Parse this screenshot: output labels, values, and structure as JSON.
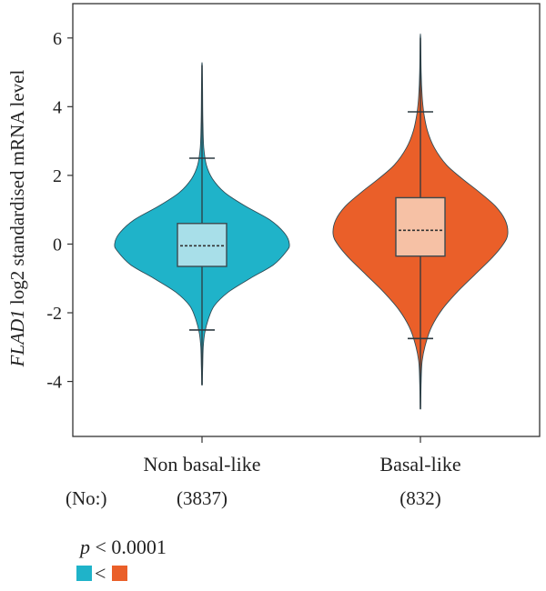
{
  "chart_data": {
    "type": "violin",
    "ylabel_gene": "FLAD1",
    "ylabel_rest": " log2 standardised mRNA level",
    "ylim": [
      -5.6,
      7.0
    ],
    "yticks": [
      -4,
      -2,
      0,
      2,
      4,
      6
    ],
    "ytick_labels": [
      "-4",
      "-2",
      "0",
      "2",
      "4",
      "6"
    ],
    "grid": false,
    "categories": [
      "Non basal-like",
      "Basal-like"
    ],
    "n_prefix": "(No:)",
    "n_labels": [
      "(3837)",
      "(832)"
    ],
    "series": [
      {
        "category": "Non basal-like",
        "n": 3837,
        "violin_color": "#1fb3c9",
        "box_color": "#a8dfe9",
        "min": -4.1,
        "max": 5.2,
        "whisker_low": -2.5,
        "whisker_high": 2.5,
        "q1": -0.65,
        "median": -0.05,
        "q3": 0.6,
        "density": [
          [
            -4.1,
            0.004
          ],
          [
            -3.5,
            0.008
          ],
          [
            -3.0,
            0.014
          ],
          [
            -2.6,
            0.03
          ],
          [
            -2.2,
            0.07
          ],
          [
            -1.8,
            0.14
          ],
          [
            -1.4,
            0.3
          ],
          [
            -1.0,
            0.55
          ],
          [
            -0.6,
            0.82
          ],
          [
            -0.2,
            0.97
          ],
          [
            0.0,
            1.0
          ],
          [
            0.3,
            0.95
          ],
          [
            0.7,
            0.78
          ],
          [
            1.1,
            0.5
          ],
          [
            1.5,
            0.26
          ],
          [
            1.9,
            0.12
          ],
          [
            2.3,
            0.05
          ],
          [
            2.8,
            0.02
          ],
          [
            3.5,
            0.01
          ],
          [
            4.5,
            0.006
          ],
          [
            5.2,
            0.003
          ]
        ]
      },
      {
        "category": "Basal-like",
        "n": 832,
        "violin_color": "#ea5f29",
        "box_color": "#f6c1a5",
        "min": -4.8,
        "max": 6.0,
        "whisker_low": -2.75,
        "whisker_high": 3.85,
        "q1": -0.35,
        "median": 0.4,
        "q3": 1.35,
        "density": [
          [
            -4.8,
            0.003
          ],
          [
            -4.0,
            0.008
          ],
          [
            -3.4,
            0.02
          ],
          [
            -2.9,
            0.06
          ],
          [
            -2.4,
            0.13
          ],
          [
            -1.9,
            0.25
          ],
          [
            -1.4,
            0.42
          ],
          [
            -0.9,
            0.62
          ],
          [
            -0.4,
            0.82
          ],
          [
            0.0,
            0.95
          ],
          [
            0.3,
            1.0
          ],
          [
            0.7,
            0.97
          ],
          [
            1.1,
            0.86
          ],
          [
            1.5,
            0.68
          ],
          [
            1.9,
            0.48
          ],
          [
            2.3,
            0.3
          ],
          [
            2.8,
            0.16
          ],
          [
            3.3,
            0.08
          ],
          [
            3.8,
            0.04
          ],
          [
            4.3,
            0.02
          ],
          [
            5.0,
            0.008
          ],
          [
            6.0,
            0.003
          ]
        ]
      }
    ],
    "p_value_text": " < 0.0001",
    "p_symbol": "p",
    "comparison_symbol": "<"
  }
}
